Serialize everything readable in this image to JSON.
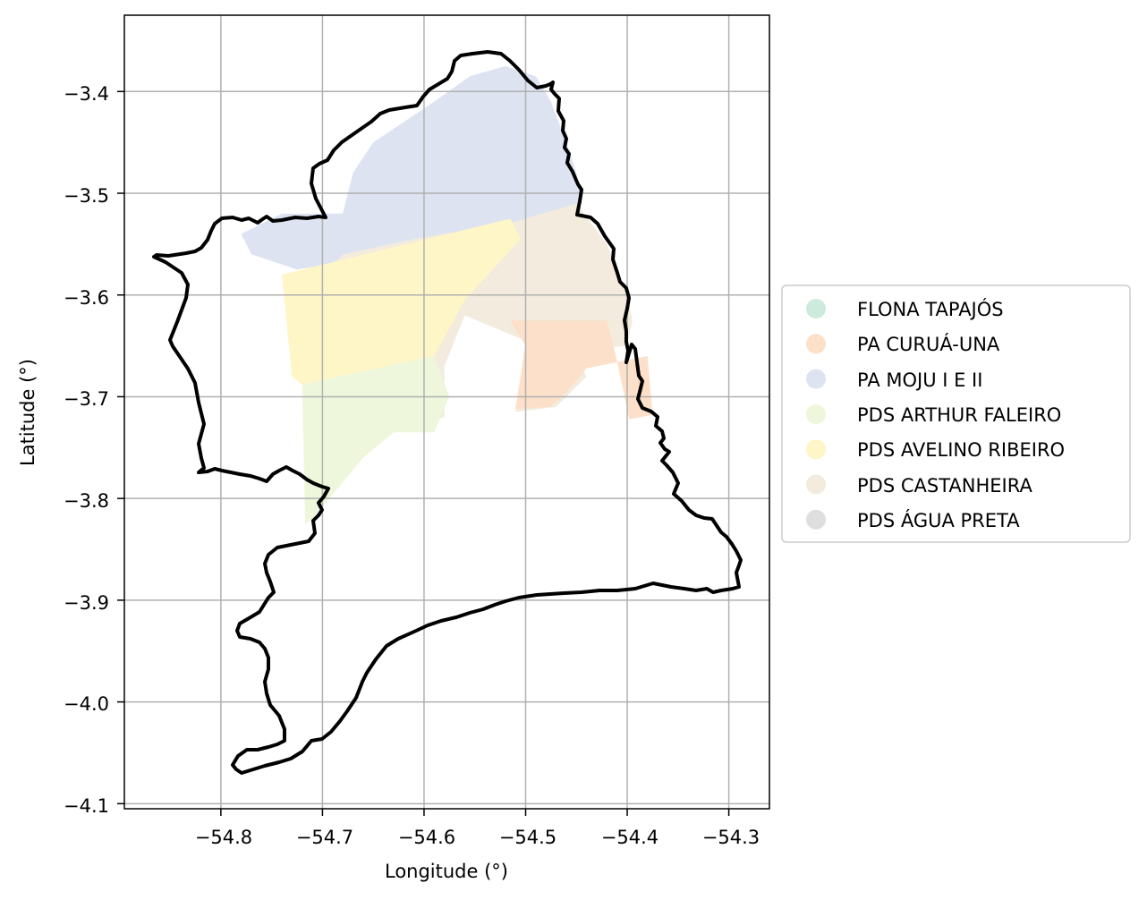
{
  "map": {
    "xlabel": "Longitude (°)",
    "ylabel": "Latitude (°)",
    "x_ticks": [
      "−54.8",
      "−54.7",
      "−54.6",
      "−54.5",
      "−54.4",
      "−54.3"
    ],
    "y_ticks": [
      "−3.4",
      "−3.5",
      "−3.6",
      "−3.7",
      "−3.8",
      "−3.9",
      "−4.0",
      "−4.1"
    ],
    "grid": true,
    "boundary_color": "#000000",
    "legend_position": "right",
    "legend": [
      {
        "label": "FLONA TAPAJÓS",
        "color": "#cdebdc"
      },
      {
        "label": "PA CURUÁ-UNA",
        "color": "#fde0c9"
      },
      {
        "label": "PA MOJU I E II",
        "color": "#dde3f1"
      },
      {
        "label": "PDS ARTHUR FALEIRO",
        "color": "#eef7db"
      },
      {
        "label": "PDS AVELINO RIBEIRO",
        "color": "#fff6c7"
      },
      {
        "label": "PDS CASTANHEIRA",
        "color": "#f3ebdd"
      },
      {
        "label": "PDS ÁGUA PRETA",
        "color": "#dedede"
      }
    ]
  },
  "chart_data": {
    "type": "map",
    "xlabel": "Longitude (°)",
    "ylabel": "Latitude (°)",
    "xlim": [
      -54.895,
      -54.26
    ],
    "ylim": [
      -4.105,
      -3.325
    ],
    "x_ticks": [
      -54.8,
      -54.7,
      -54.6,
      -54.5,
      -54.4,
      -54.3
    ],
    "y_ticks": [
      -3.4,
      -3.5,
      -3.6,
      -3.7,
      -3.8,
      -3.9,
      -4.0,
      -4.1
    ],
    "grid": true,
    "categories": [
      "FLONA TAPAJÓS",
      "PA CURUÁ-UNA",
      "PA MOJU I E II",
      "PDS ARTHUR FALEIRO",
      "PDS AVELINO RIBEIRO",
      "PDS CASTANHEIRA",
      "PDS ÁGUA PRETA"
    ],
    "regions": [
      {
        "name": "PA MOJU I E II",
        "color": "#dde3f1",
        "lonlat": [
          [
            -54.78,
            -3.54
          ],
          [
            -54.74,
            -3.52
          ],
          [
            -54.68,
            -3.52
          ],
          [
            -54.67,
            -3.48
          ],
          [
            -54.65,
            -3.45
          ],
          [
            -54.62,
            -3.43
          ],
          [
            -54.59,
            -3.41
          ],
          [
            -54.555,
            -3.385
          ],
          [
            -54.52,
            -3.375
          ],
          [
            -54.49,
            -3.385
          ],
          [
            -54.475,
            -3.41
          ],
          [
            -54.46,
            -3.45
          ],
          [
            -54.45,
            -3.48
          ],
          [
            -54.445,
            -3.51
          ],
          [
            -54.51,
            -3.53
          ],
          [
            -54.58,
            -3.555
          ],
          [
            -54.66,
            -3.565
          ],
          [
            -54.725,
            -3.575
          ],
          [
            -54.77,
            -3.56
          ]
        ]
      },
      {
        "name": "PDS CASTANHEIRA",
        "color": "#f3ebdd",
        "lonlat": [
          [
            -54.51,
            -3.528
          ],
          [
            -54.45,
            -3.51
          ],
          [
            -54.42,
            -3.55
          ],
          [
            -54.4,
            -3.6
          ],
          [
            -54.395,
            -3.625
          ],
          [
            -54.4,
            -3.65
          ],
          [
            -54.455,
            -3.655
          ],
          [
            -54.44,
            -3.68
          ],
          [
            -54.47,
            -3.71
          ],
          [
            -54.51,
            -3.715
          ],
          [
            -54.5,
            -3.645
          ],
          [
            -54.56,
            -3.62
          ],
          [
            -54.58,
            -3.67
          ],
          [
            -54.58,
            -3.72
          ],
          [
            -54.625,
            -3.73
          ],
          [
            -54.65,
            -3.72
          ],
          [
            -54.65,
            -3.68
          ],
          [
            -54.7,
            -3.62
          ],
          [
            -54.72,
            -3.61
          ],
          [
            -54.68,
            -3.56
          ],
          [
            -54.61,
            -3.545
          ]
        ]
      },
      {
        "name": "PDS AVELINO RIBEIRO",
        "color": "#fff6c7",
        "lonlat": [
          [
            -54.74,
            -3.58
          ],
          [
            -54.515,
            -3.525
          ],
          [
            -54.505,
            -3.545
          ],
          [
            -54.56,
            -3.605
          ],
          [
            -54.59,
            -3.66
          ],
          [
            -54.72,
            -3.688
          ],
          [
            -54.73,
            -3.68
          ]
        ]
      },
      {
        "name": "PA CURUÁ-UNA",
        "color": "#fde0c9",
        "lonlat": [
          [
            -54.515,
            -3.625
          ],
          [
            -54.42,
            -3.625
          ],
          [
            -54.41,
            -3.665
          ],
          [
            -54.398,
            -3.722
          ],
          [
            -54.375,
            -3.718
          ],
          [
            -54.38,
            -3.66
          ],
          [
            -54.44,
            -3.672
          ],
          [
            -54.455,
            -3.69
          ],
          [
            -54.475,
            -3.71
          ],
          [
            -54.51,
            -3.712
          ],
          [
            -54.5,
            -3.65
          ]
        ]
      },
      {
        "name": "PDS ARTHUR FALEIRO",
        "color": "#eef7db",
        "lonlat": [
          [
            -54.72,
            -3.688
          ],
          [
            -54.59,
            -3.66
          ],
          [
            -54.575,
            -3.7
          ],
          [
            -54.59,
            -3.735
          ],
          [
            -54.63,
            -3.735
          ],
          [
            -54.66,
            -3.76
          ],
          [
            -54.71,
            -3.82
          ],
          [
            -54.717,
            -3.825
          ]
        ]
      }
    ],
    "boundary_lonlat": [
      [
        -54.83,
        -3.77
      ],
      [
        -54.84,
        -3.65
      ],
      [
        -54.88,
        -3.565
      ],
      [
        -54.825,
        -3.565
      ],
      [
        -54.78,
        -3.525
      ],
      [
        -54.74,
        -3.525
      ],
      [
        -54.7,
        -3.52
      ],
      [
        -54.68,
        -3.455
      ],
      [
        -54.62,
        -3.42
      ],
      [
        -54.57,
        -3.365
      ],
      [
        -54.52,
        -3.36
      ],
      [
        -54.5,
        -3.38
      ],
      [
        -54.48,
        -3.395
      ],
      [
        -54.47,
        -3.43
      ],
      [
        -54.455,
        -3.48
      ],
      [
        -54.44,
        -3.535
      ],
      [
        -54.41,
        -3.585
      ],
      [
        -54.405,
        -3.625
      ],
      [
        -54.4,
        -3.665
      ],
      [
        -54.37,
        -3.725
      ],
      [
        -54.355,
        -3.78
      ],
      [
        -54.31,
        -3.825
      ],
      [
        -54.3,
        -3.865
      ],
      [
        -54.325,
        -3.885
      ],
      [
        -54.4,
        -3.89
      ],
      [
        -54.47,
        -3.895
      ],
      [
        -54.55,
        -3.91
      ],
      [
        -54.62,
        -3.935
      ],
      [
        -54.66,
        -3.97
      ],
      [
        -54.7,
        -4.01
      ],
      [
        -54.74,
        -4.04
      ],
      [
        -54.76,
        -4.055
      ],
      [
        -54.79,
        -4.065
      ],
      [
        -54.785,
        -4.035
      ],
      [
        -54.76,
        -3.99
      ],
      [
        -54.765,
        -3.945
      ],
      [
        -54.73,
        -3.875
      ],
      [
        -54.72,
        -3.825
      ],
      [
        -54.7,
        -3.79
      ],
      [
        -54.74,
        -3.755
      ],
      [
        -54.79,
        -3.775
      ]
    ]
  }
}
